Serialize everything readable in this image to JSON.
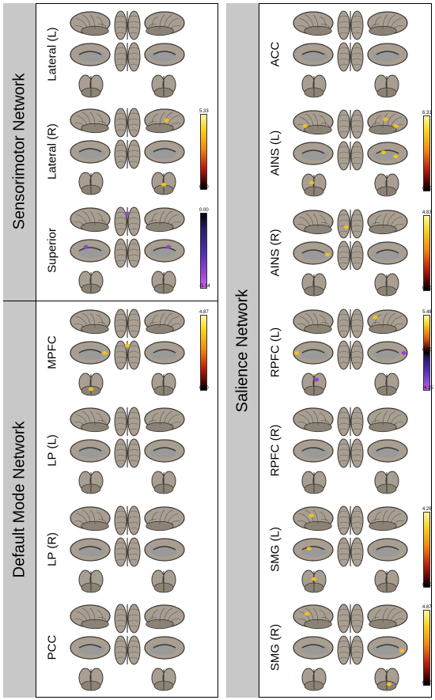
{
  "colors": {
    "brain_light": "#a89f92",
    "brain_mid": "#8c8377",
    "brain_dark": "#3c3833",
    "medial_gray": "#9a9a9a",
    "activation_hot": "#f5c21b",
    "activation_purple": "#8f3fd6",
    "band_gray": "#c8c8c8"
  },
  "sections": [
    {
      "title": "Sensorimotor Network",
      "rows": [
        {
          "label": "Lateral (L)",
          "colorbar": null,
          "blobs": []
        },
        {
          "label": "Lateral (R)",
          "colorbar": {
            "type": "hot",
            "max": "5.33",
            "min": "0.00"
          },
          "blobs": [
            {
              "view": "lat-r",
              "fx": 0.55,
              "fy": 0.45,
              "c": "hot"
            },
            {
              "view": "cer-r",
              "fx": 0.5,
              "fy": 0.55,
              "c": "hot"
            }
          ]
        },
        {
          "label": "Superior",
          "colorbar": {
            "type": "neg",
            "max": "0.00",
            "min": "-5.04"
          },
          "blobs": [
            {
              "view": "med-l",
              "fx": 0.4,
              "fy": 0.3,
              "c": "purple"
            },
            {
              "view": "med-r",
              "fx": 0.6,
              "fy": 0.3,
              "c": "purple"
            },
            {
              "view": "top",
              "fx": 0.5,
              "fy": 0.25,
              "c": "purple"
            }
          ]
        }
      ]
    },
    {
      "title": "Default Mode Network",
      "rows": [
        {
          "label": "MPFC",
          "colorbar": {
            "type": "hot",
            "max": "4.87",
            "min": "0.00"
          },
          "blobs": [
            {
              "view": "med-l",
              "fx": 0.85,
              "fy": 0.45,
              "c": "hot"
            },
            {
              "view": "bot",
              "fx": 0.5,
              "fy": 0.2,
              "c": "hot"
            },
            {
              "view": "cer-l",
              "fx": 0.5,
              "fy": 0.7,
              "c": "hot"
            }
          ]
        },
        {
          "label": "LP (L)",
          "colorbar": null,
          "blobs": []
        },
        {
          "label": "LP (R)",
          "colorbar": null,
          "blobs": []
        },
        {
          "label": "PCC",
          "colorbar": null,
          "blobs": []
        }
      ]
    },
    {
      "title": "Salience Network",
      "rows": [
        {
          "label": "ACC",
          "colorbar": null,
          "blobs": []
        },
        {
          "label": "AINS (L)",
          "colorbar": {
            "type": "hot",
            "max": "6.31",
            "min": "0.00"
          },
          "blobs": [
            {
              "view": "lat-l",
              "fx": 0.3,
              "fy": 0.6,
              "c": "hot"
            },
            {
              "view": "lat-r",
              "fx": 0.7,
              "fy": 0.6,
              "c": "hot"
            },
            {
              "view": "lat-r",
              "fx": 0.45,
              "fy": 0.35,
              "c": "hot"
            },
            {
              "view": "med-r",
              "fx": 0.4,
              "fy": 0.4,
              "c": "hot"
            },
            {
              "view": "med-r",
              "fx": 0.7,
              "fy": 0.55,
              "c": "hot"
            },
            {
              "view": "cer-l",
              "fx": 0.4,
              "fy": 0.4,
              "c": "hot"
            }
          ]
        },
        {
          "label": "AINS (R)",
          "colorbar": {
            "type": "hot",
            "max": "4.83",
            "min": "0.00"
          },
          "blobs": [
            {
              "view": "top",
              "fx": 0.35,
              "fy": 0.6,
              "c": "hot"
            },
            {
              "view": "med-l",
              "fx": 0.85,
              "fy": 0.5,
              "c": "hot"
            }
          ]
        },
        {
          "label": "RPFC (L)",
          "colorbar": {
            "type": "div",
            "max": "5.48",
            "mid": "0.00",
            "min": "-4.25"
          },
          "blobs": [
            {
              "view": "lat-r",
              "fx": 0.2,
              "fy": 0.3,
              "c": "hot"
            },
            {
              "view": "med-l",
              "fx": 0.1,
              "fy": 0.45,
              "c": "hot"
            },
            {
              "view": "med-r",
              "fx": 0.9,
              "fy": 0.45,
              "c": "purple"
            },
            {
              "view": "cer-l",
              "fx": 0.6,
              "fy": 0.3,
              "c": "purple"
            }
          ]
        },
        {
          "label": "RPFC (R)",
          "colorbar": null,
          "blobs": []
        },
        {
          "label": "SMG (L)",
          "colorbar": {
            "type": "hot",
            "max": "4.26",
            "min": "0.00"
          },
          "blobs": [
            {
              "view": "lat-l",
              "fx": 0.45,
              "fy": 0.35,
              "c": "hot"
            },
            {
              "view": "med-l",
              "fx": 0.4,
              "fy": 0.4,
              "c": "hot"
            },
            {
              "view": "cer-l",
              "fx": 0.5,
              "fy": 0.4,
              "c": "hot"
            }
          ]
        },
        {
          "label": "SMG (R)",
          "colorbar": {
            "type": "hot",
            "max": "4.87",
            "min": "0.00"
          },
          "blobs": [
            {
              "view": "lat-l",
              "fx": 0.35,
              "fy": 0.35,
              "c": "hot"
            },
            {
              "view": "med-r",
              "fx": 0.85,
              "fy": 0.55,
              "c": "hot"
            },
            {
              "view": "cer-r",
              "fx": 0.6,
              "fy": 0.7,
              "c": "hot"
            }
          ]
        }
      ]
    }
  ]
}
